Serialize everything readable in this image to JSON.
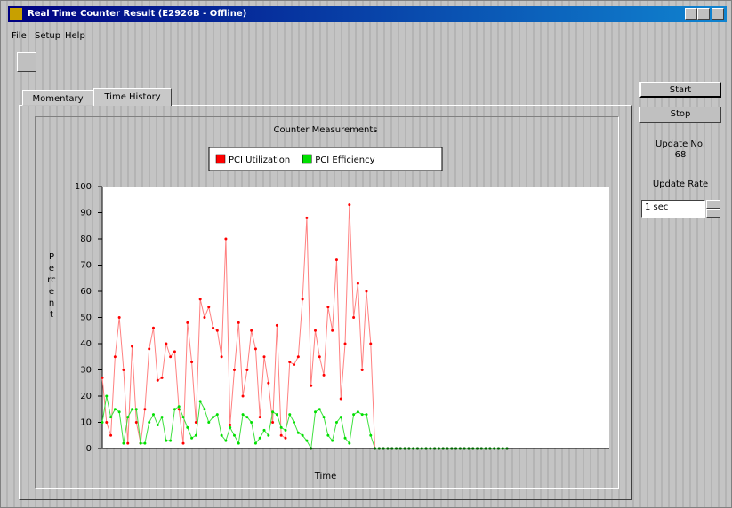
{
  "window": {
    "title": "Real Time Counter Result (E2926B - Offline)"
  },
  "menu": [
    "File",
    "Setup",
    "Help"
  ],
  "tabs": [
    "Momentary",
    "Time History"
  ],
  "buttons": [
    "Start",
    "Stop"
  ],
  "update_no_label": "Update No.",
  "update_no": 68,
  "update_rate_label": "Update Rate",
  "update_rate": "1 sec",
  "chart_data": {
    "type": "line",
    "title": "Counter Measurements",
    "y_label": "Percent",
    "x_label": "Time",
    "xlim": [
      0,
      119
    ],
    "ylim": [
      0,
      100
    ],
    "yticks": [
      0,
      10,
      20,
      30,
      40,
      50,
      60,
      70,
      80,
      90,
      100
    ],
    "legend": "top",
    "x": [
      0,
      1,
      2,
      3,
      4,
      5,
      6,
      7,
      8,
      9,
      10,
      11,
      12,
      13,
      14,
      15,
      16,
      17,
      18,
      19,
      20,
      21,
      22,
      23,
      24,
      25,
      26,
      27,
      28,
      29,
      30,
      31,
      32,
      33,
      34,
      35,
      36,
      37,
      38,
      39,
      40,
      41,
      42,
      43,
      44,
      45,
      46,
      47,
      48,
      49,
      50,
      51,
      52,
      53,
      54,
      55,
      56,
      57,
      58,
      59,
      60,
      61,
      62,
      63,
      64,
      65,
      66,
      67,
      68,
      69,
      70,
      71,
      72,
      73,
      74,
      75,
      76,
      77,
      78,
      79,
      80,
      81,
      82,
      83,
      84,
      85,
      86,
      87,
      88,
      89,
      90,
      91,
      92,
      93,
      94,
      95
    ],
    "series": [
      {
        "name": "PCI Utilization",
        "color": "#ff0000",
        "line_color": "#ff8080",
        "values": [
          27,
          10,
          5,
          35,
          50,
          30,
          2,
          39,
          10,
          2,
          15,
          38,
          46,
          26,
          27,
          40,
          35,
          37,
          15,
          2,
          48,
          33,
          10,
          57,
          50,
          54,
          46,
          45,
          35,
          80,
          9,
          30,
          48,
          20,
          30,
          45,
          38,
          12,
          35,
          25,
          10,
          47,
          5,
          4,
          33,
          32,
          35,
          57,
          88,
          24,
          45,
          35,
          28,
          54,
          45,
          72,
          19,
          40,
          93,
          50,
          63,
          30,
          60,
          40,
          0,
          0,
          0,
          0,
          0,
          0,
          0,
          0,
          0,
          0,
          0,
          0,
          0,
          0,
          0,
          0,
          0,
          0,
          0,
          0,
          0,
          0,
          0,
          0,
          0,
          0,
          0,
          0,
          0,
          0,
          0,
          0
        ]
      },
      {
        "name": "PCI Efficiency",
        "color": "#00e000",
        "line_color": "#40e040",
        "values": [
          10,
          20,
          12,
          15,
          14,
          2,
          12,
          15,
          15,
          2,
          2,
          10,
          13,
          9,
          12,
          3,
          3,
          15,
          16,
          12,
          8,
          4,
          5,
          18,
          15,
          10,
          12,
          13,
          5,
          3,
          8,
          5,
          2,
          13,
          12,
          10,
          2,
          4,
          7,
          5,
          14,
          13,
          8,
          7,
          13,
          10,
          6,
          5,
          3,
          0,
          14,
          15,
          12,
          5,
          3,
          10,
          12,
          4,
          2,
          13,
          14,
          13,
          13,
          5,
          0,
          0,
          0,
          0,
          0,
          0,
          0,
          0,
          0,
          0,
          0,
          0,
          0,
          0,
          0,
          0,
          0,
          0,
          0,
          0,
          0,
          0,
          0,
          0,
          0,
          0,
          0,
          0,
          0,
          0,
          0,
          0
        ]
      }
    ]
  }
}
